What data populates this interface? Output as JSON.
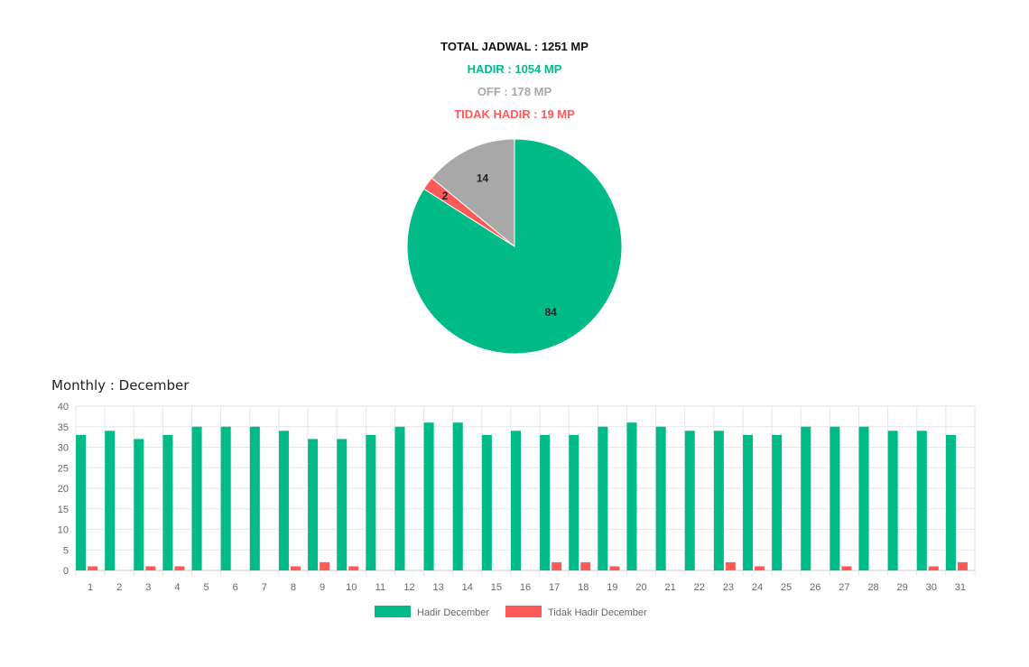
{
  "summary": {
    "total": "TOTAL JADWAL : 1251 MP",
    "hadir": "HADIR : 1054 MP",
    "off": "OFF : 178 MP",
    "tidak_hadir": "TIDAK HADIR : 19 MP"
  },
  "colors": {
    "hadir": "#00bb88",
    "off": "#a8a8a8",
    "tidak_hadir": "#ff5a5a",
    "total": "#111111",
    "grid": "#e6e6e6",
    "axis_text": "#666666"
  },
  "chart_data": [
    {
      "type": "pie",
      "slices": [
        {
          "label": "84",
          "value": 84,
          "color": "#00bb88"
        },
        {
          "label": "2",
          "value": 2,
          "color": "#ff5a5a"
        },
        {
          "label": "14",
          "value": 14,
          "color": "#a8a8a8"
        }
      ]
    },
    {
      "type": "bar",
      "title": "Monthly : December",
      "categories": [
        "1",
        "2",
        "3",
        "4",
        "5",
        "6",
        "7",
        "8",
        "9",
        "10",
        "11",
        "12",
        "13",
        "14",
        "15",
        "16",
        "17",
        "18",
        "19",
        "20",
        "21",
        "22",
        "23",
        "24",
        "25",
        "26",
        "27",
        "28",
        "29",
        "30",
        "31"
      ],
      "ylim": [
        0,
        40
      ],
      "yticks": [
        0,
        5,
        10,
        15,
        20,
        25,
        30,
        35,
        40
      ],
      "grid": true,
      "legend": "bottom-center",
      "series": [
        {
          "name": "Hadir December",
          "color": "#00bb88",
          "values": [
            33,
            34,
            32,
            33,
            35,
            35,
            35,
            34,
            32,
            32,
            33,
            35,
            36,
            36,
            33,
            34,
            33,
            33,
            35,
            36,
            35,
            34,
            34,
            33,
            33,
            35,
            35,
            35,
            34,
            34,
            33
          ]
        },
        {
          "name": "Tidak Hadir December",
          "color": "#ff5a5a",
          "values": [
            1,
            0,
            1,
            1,
            0,
            0,
            0,
            1,
            2,
            1,
            0,
            0,
            0,
            0,
            0,
            0,
            2,
            2,
            1,
            0,
            0,
            0,
            2,
            1,
            0,
            0,
            1,
            0,
            0,
            1,
            2
          ]
        }
      ]
    }
  ]
}
